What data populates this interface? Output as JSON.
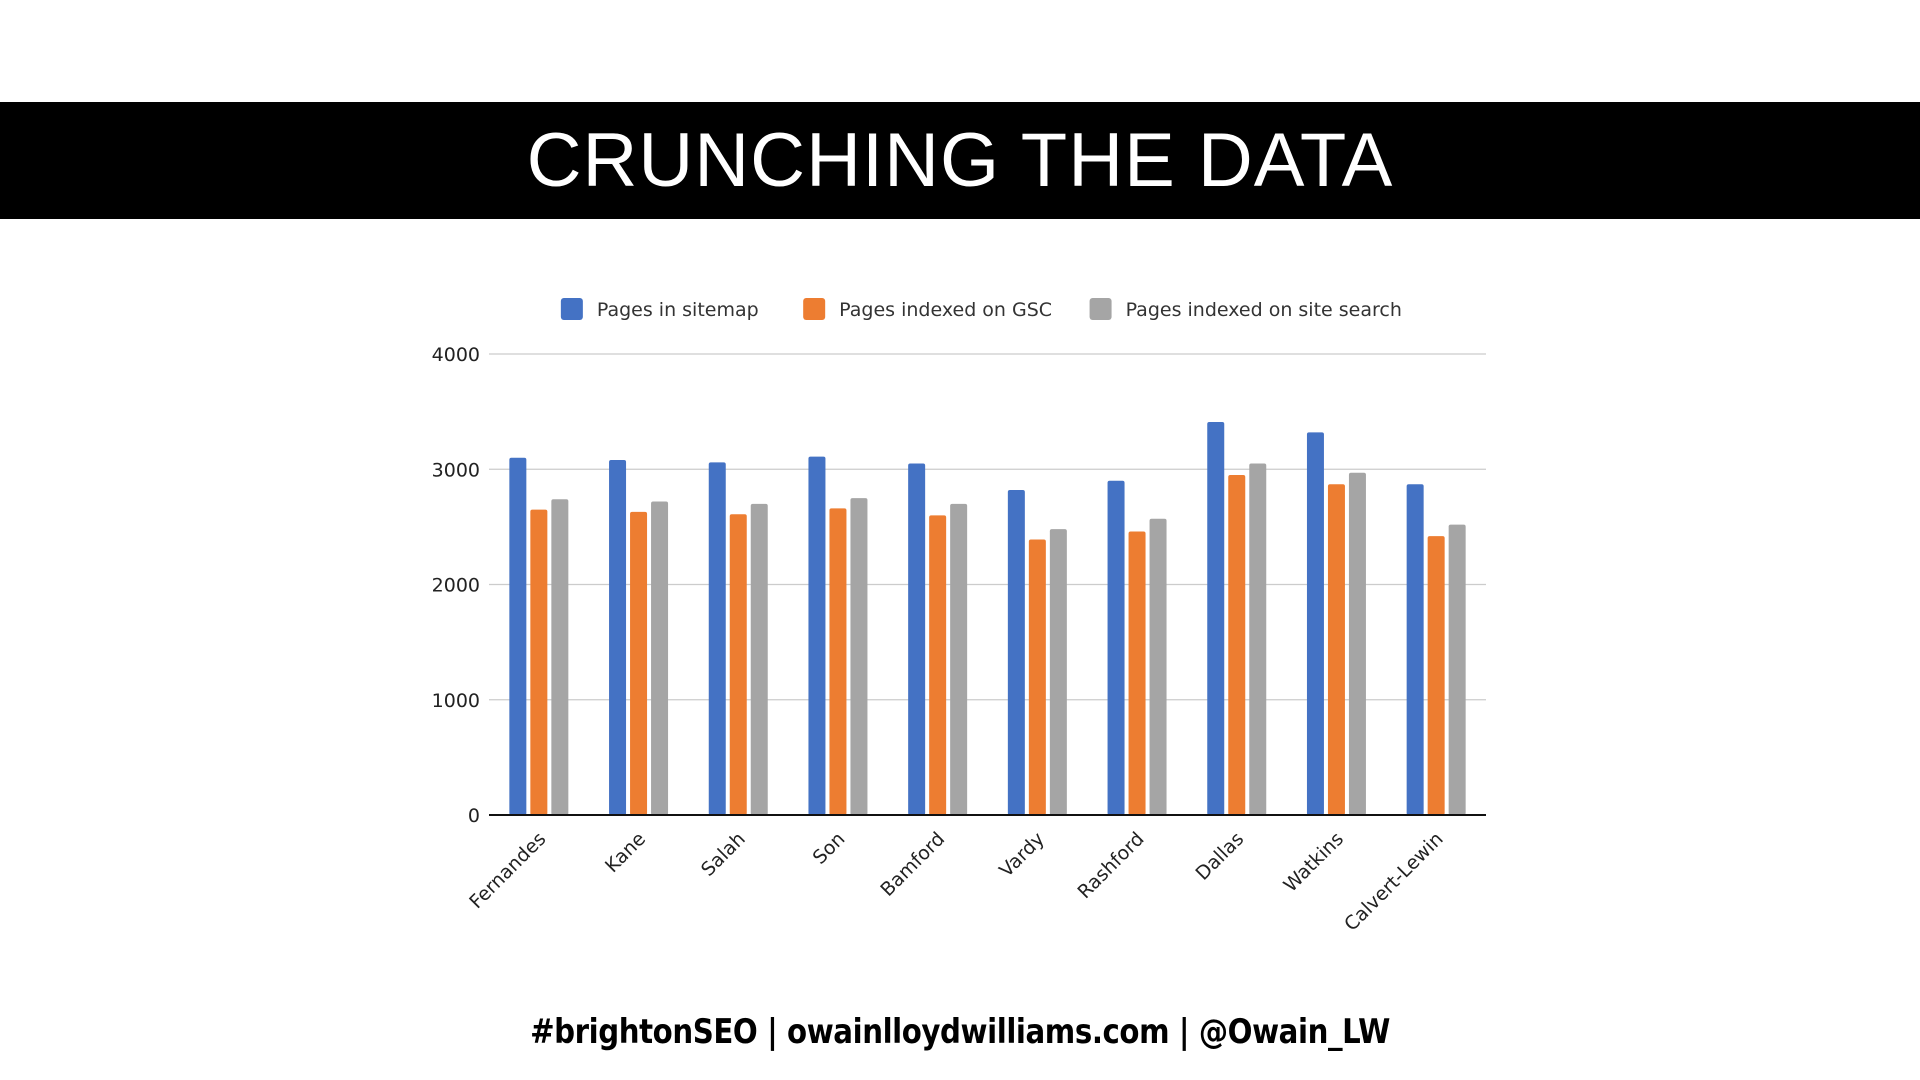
{
  "slide": {
    "title": "CRUNCHING THE DATA",
    "footer": "#brightonSEO | owainlloydwilliams.com | @Owain_LW"
  },
  "chart_data": {
    "type": "bar",
    "title": "",
    "xlabel": "",
    "ylabel": "",
    "ylim": [
      0,
      4000
    ],
    "yticks": [
      0,
      1000,
      2000,
      3000,
      4000
    ],
    "grid": true,
    "legend_position": "top",
    "categories": [
      "Fernandes",
      "Kane",
      "Salah",
      "Son",
      "Bamford",
      "Vardy",
      "Rashford",
      "Dallas",
      "Watkins",
      "Calvert-Lewin"
    ],
    "series": [
      {
        "name": "Pages in sitemap",
        "color": "#4472C4",
        "values": [
          3100,
          3080,
          3060,
          3110,
          3050,
          2820,
          2900,
          3410,
          3320,
          2870
        ]
      },
      {
        "name": "Pages indexed on GSC",
        "color": "#ED7D31",
        "values": [
          2650,
          2630,
          2610,
          2660,
          2600,
          2390,
          2460,
          2950,
          2870,
          2420
        ]
      },
      {
        "name": "Pages indexed on site search",
        "color": "#A5A5A5",
        "values": [
          2740,
          2720,
          2700,
          2750,
          2700,
          2480,
          2570,
          3050,
          2970,
          2520
        ]
      }
    ]
  }
}
